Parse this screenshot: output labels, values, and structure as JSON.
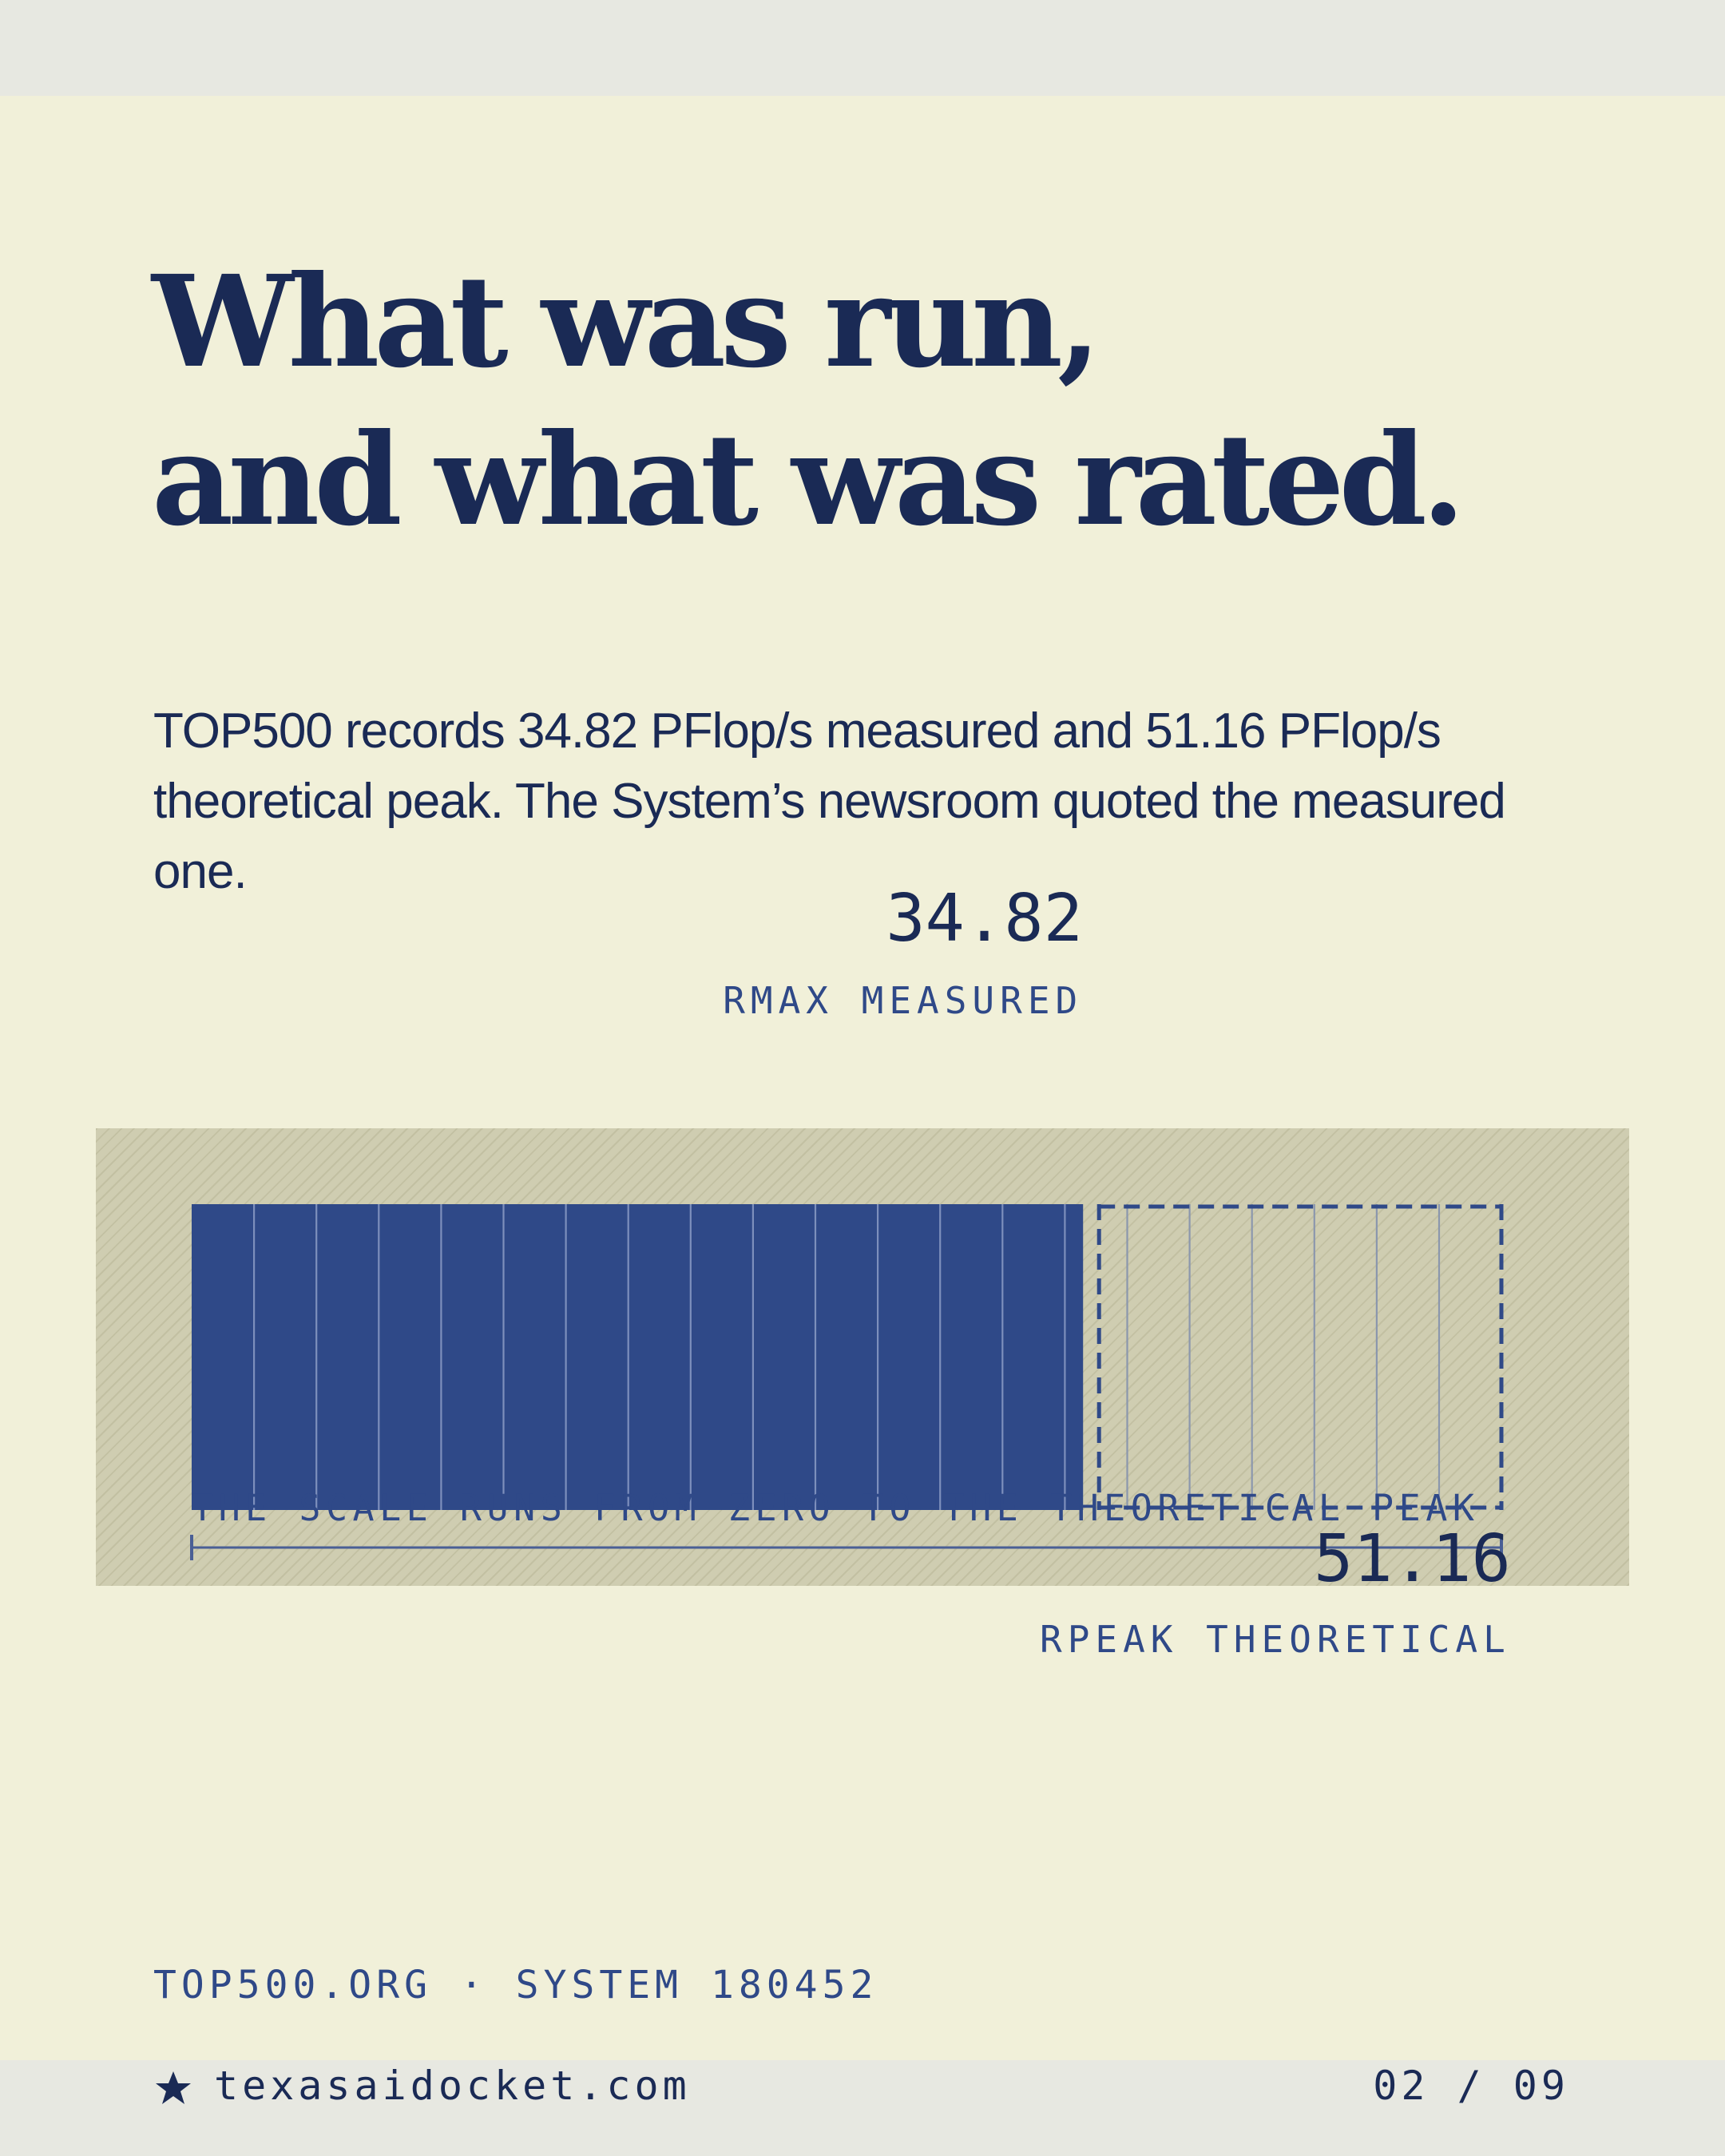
{
  "headline": {
    "line1": "What was run,",
    "line2": "and what was rated."
  },
  "subtitle": "TOP500 records 34.82 PFlop/s measured and 51.16 PFlop/s theoretical peak. The System’s newsroom quoted the measured one.",
  "chart_data": {
    "type": "bar",
    "orientation": "horizontal",
    "xlim": [
      0,
      51.16
    ],
    "series": [
      {
        "name": "RMAX MEASURED",
        "value": 34.82,
        "label": "34.82",
        "style": "solid"
      },
      {
        "name": "RPEAK THEORETICAL",
        "value": 51.16,
        "label": "51.16",
        "style": "dashed-outline"
      }
    ],
    "scale_note": "THE SCALE RUNS FROM ZERO TO THE THEORETICAL PEAK",
    "colors": {
      "measured": "#2f4988",
      "peak_outline": "#2f4988",
      "band": "#cfcdb1"
    }
  },
  "footer": {
    "source": "TOP500.ORG · SYSTEM 180452",
    "site": "texasaidocket.com",
    "pager": "02 / 09",
    "icon": "star-icon"
  }
}
